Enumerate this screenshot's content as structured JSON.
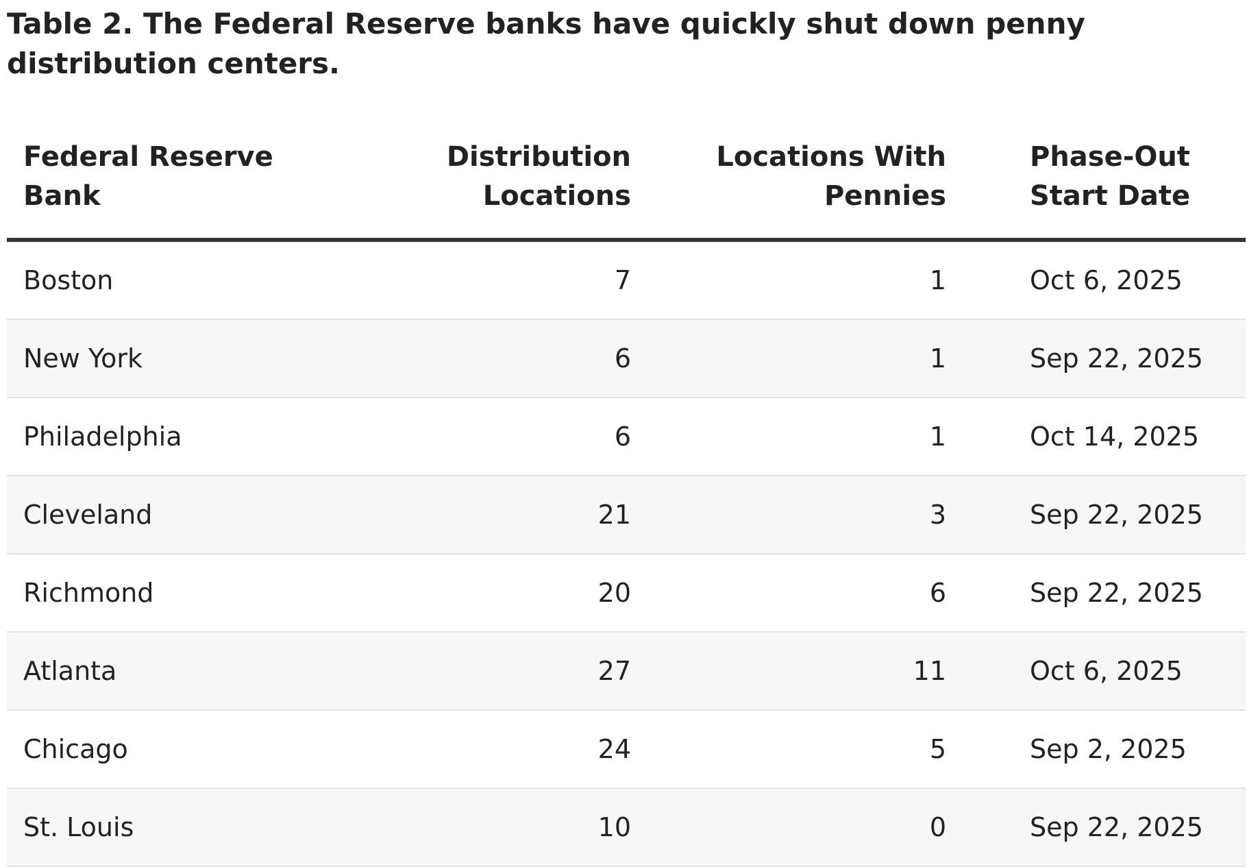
{
  "title": "Table 2. The Federal Reserve banks have quickly shut down penny distribution centers.",
  "columns": [
    {
      "line1": "Federal Reserve",
      "line2": "Bank"
    },
    {
      "line1": "Distribution",
      "line2": "Locations"
    },
    {
      "line1": "Locations With",
      "line2": "Pennies"
    },
    {
      "line1": "Phase-Out",
      "line2": "Start Date"
    }
  ],
  "rows": [
    {
      "bank": "Boston",
      "distribution": "7",
      "with_pennies": "1",
      "phase_out": "Oct 6, 2025"
    },
    {
      "bank": "New York",
      "distribution": "6",
      "with_pennies": "1",
      "phase_out": "Sep 22, 2025"
    },
    {
      "bank": "Philadelphia",
      "distribution": "6",
      "with_pennies": "1",
      "phase_out": "Oct 14, 2025"
    },
    {
      "bank": "Cleveland",
      "distribution": "21",
      "with_pennies": "3",
      "phase_out": "Sep 22, 2025"
    },
    {
      "bank": "Richmond",
      "distribution": "20",
      "with_pennies": "6",
      "phase_out": "Sep 22, 2025"
    },
    {
      "bank": "Atlanta",
      "distribution": "27",
      "with_pennies": "11",
      "phase_out": "Oct 6, 2025"
    },
    {
      "bank": "Chicago",
      "distribution": "24",
      "with_pennies": "5",
      "phase_out": "Sep 2, 2025"
    },
    {
      "bank": "St. Louis",
      "distribution": "10",
      "with_pennies": "0",
      "phase_out": "Sep 22, 2025"
    }
  ]
}
